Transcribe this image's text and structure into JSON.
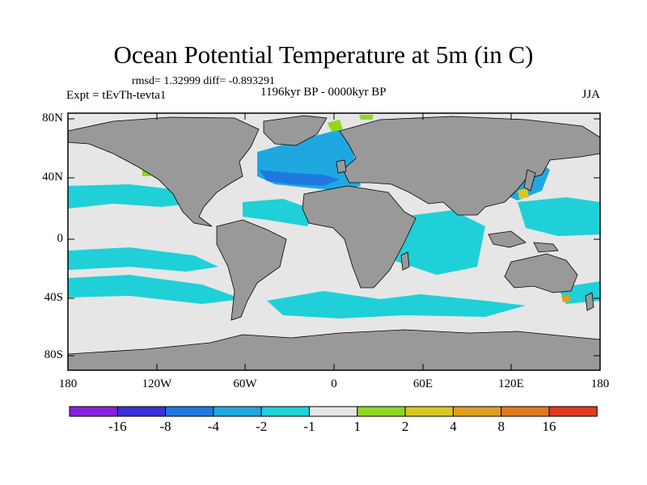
{
  "title": "Ocean Potential Temperature at 5m (in C)",
  "stats": "rmsd= 1.32999 diff= -0.893291",
  "experiment": "Expt = tEvTh-tevta1",
  "period": "1196kyr BP - 0000kyr BP",
  "season": "JJA",
  "axes": {
    "y_ticks": [
      "80N",
      "40N",
      "0",
      "40S",
      "80S"
    ],
    "x_ticks": [
      "180",
      "120W",
      "60W",
      "0",
      "60E",
      "120E",
      "180"
    ]
  },
  "colorbar": {
    "colors": [
      "#8a1fe0",
      "#3b2fd8",
      "#1f78e0",
      "#1fa8e0",
      "#1fd0d8",
      "#e6e6e6",
      "#8fd81f",
      "#d8c81f",
      "#e0a01f",
      "#e07a1f",
      "#e03a1f"
    ],
    "labels": [
      "-16",
      "-8",
      "-4",
      "-2",
      "-1",
      "1",
      "2",
      "4",
      "8",
      "16"
    ]
  },
  "field_colors": {
    "land": "#999999",
    "neutral": "#e6e6e6",
    "minus1": "#1fd0d8",
    "minus2": "#1fa8e0",
    "minus4": "#1f78e0",
    "plus1": "#8fd81f",
    "plus2": "#d8c81f",
    "plus4": "#e0a01f"
  }
}
